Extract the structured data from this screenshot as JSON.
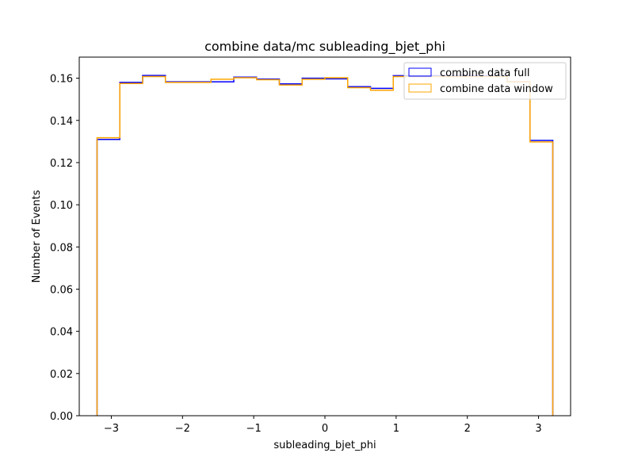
{
  "chart_data": {
    "type": "step-histogram",
    "title": "combine data/mc subleading_bjet_phi",
    "xlabel": "subleading_bjet_phi",
    "ylabel": "Number of Events",
    "xlim": [
      -3.45,
      3.45
    ],
    "ylim": [
      0.0,
      0.17
    ],
    "xticks": [
      -3,
      -2,
      -1,
      0,
      1,
      2,
      3
    ],
    "xtick_labels": [
      "−3",
      "−2",
      "−1",
      "0",
      "1",
      "2",
      "3"
    ],
    "yticks": [
      0.0,
      0.02,
      0.04,
      0.06,
      0.08,
      0.1,
      0.12,
      0.14,
      0.16
    ],
    "ytick_labels": [
      "0.00",
      "0.02",
      "0.04",
      "0.06",
      "0.08",
      "0.10",
      "0.12",
      "0.14",
      "0.16"
    ],
    "bin_edges": [
      -3.2,
      -2.88,
      -2.56,
      -2.24,
      -1.92,
      -1.6,
      -1.28,
      -0.96,
      -0.64,
      -0.32,
      0.0,
      0.32,
      0.64,
      0.96,
      1.28,
      1.6,
      1.92,
      2.24,
      2.56,
      2.88,
      3.2
    ],
    "legend_position": "top-right",
    "series": [
      {
        "name": "combine data full",
        "color": "#0000ff",
        "values": [
          0.131,
          0.158,
          0.1613,
          0.1583,
          0.1583,
          0.1583,
          0.1605,
          0.1596,
          0.1573,
          0.16,
          0.1597,
          0.156,
          0.1552,
          0.1612,
          0.1612,
          0.1612,
          0.1612,
          0.1612,
          0.1583,
          0.1305
        ]
      },
      {
        "name": "combine data window",
        "color": "#ffa500",
        "values": [
          0.1318,
          0.1575,
          0.1608,
          0.158,
          0.158,
          0.1595,
          0.1602,
          0.1593,
          0.1568,
          0.1595,
          0.1602,
          0.1555,
          0.1543,
          0.1608,
          0.1608,
          0.1608,
          0.1608,
          0.1608,
          0.1583,
          0.1298
        ]
      }
    ]
  }
}
